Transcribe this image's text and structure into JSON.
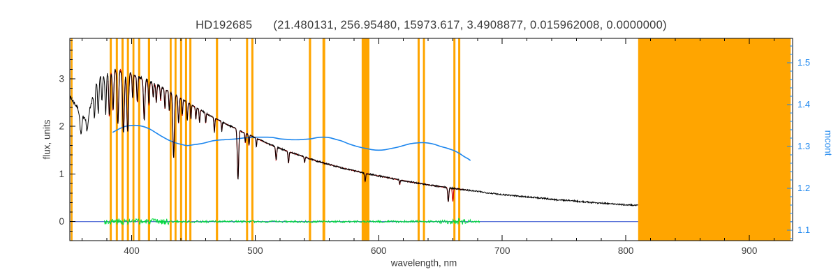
{
  "title": {
    "star": "HD192685",
    "params": "(21.480131, 256.95480, 15973.617, 3.4908877, 0.015962008, 0.0000000)"
  },
  "axes": {
    "x": {
      "label": "wavelength, nm",
      "min": 350,
      "max": 935,
      "major_ticks": [
        400,
        500,
        600,
        700,
        800,
        900
      ],
      "minor_step": 20
    },
    "y_left": {
      "label": "flux, units",
      "min": -0.4,
      "max": 3.85,
      "major_ticks": [
        0,
        1,
        2,
        3
      ],
      "minor_step": 0.2
    },
    "y_right": {
      "label": "mcont",
      "min": 1.075,
      "max": 1.558,
      "major_ticks": [
        1.1,
        1.2,
        1.3,
        1.4,
        1.5
      ],
      "minor_step": 0.02
    }
  },
  "colors": {
    "background": "#ffffff",
    "frame": "#000000",
    "text": "#3a3a3a",
    "observed": "#000000",
    "model": "#cc0000",
    "mcont": "#1c86ee",
    "residual": "#00d93c",
    "zero_line": "#2244cc",
    "mask": "#ffa500"
  },
  "chart_data": {
    "type": "line",
    "x_unit": "nm",
    "series": [
      {
        "name": "observed spectrum",
        "role": "observed",
        "axis": "y_left",
        "range": [
          350,
          810
        ],
        "noise": {
          "amp_short": 0.045,
          "amp_long": 0.016,
          "split": 425
        }
      },
      {
        "name": "model fit",
        "role": "model",
        "axis": "y_left",
        "range": [
          381,
          672
        ],
        "noise": {
          "amp_short": 0.008,
          "amp_long": 0.005,
          "split": 425
        },
        "extra_lines": [
          [
            660,
            0.28,
            0.4
          ]
        ]
      },
      {
        "name": "residual (obs - fit)",
        "role": "residual",
        "axis": "y_left",
        "range": [
          378,
          682
        ],
        "noise": {
          "amp_short": 0.06,
          "amp_long": 0.022,
          "split": 430
        },
        "bursts": [
          [
            650,
            675,
            0.05
          ]
        ]
      },
      {
        "name": "mcont",
        "role": "mcont",
        "axis": "y_right",
        "points": [
          [
            385,
            1.334
          ],
          [
            390,
            1.342
          ],
          [
            395,
            1.348
          ],
          [
            400,
            1.35
          ],
          [
            405,
            1.35
          ],
          [
            410,
            1.347
          ],
          [
            415,
            1.341
          ],
          [
            420,
            1.332
          ],
          [
            425,
            1.323
          ],
          [
            430,
            1.315
          ],
          [
            435,
            1.309
          ],
          [
            440,
            1.305
          ],
          [
            445,
            1.302
          ],
          [
            450,
            1.304
          ],
          [
            455,
            1.306
          ],
          [
            460,
            1.309
          ],
          [
            465,
            1.313
          ],
          [
            470,
            1.315
          ],
          [
            475,
            1.316
          ],
          [
            480,
            1.317
          ],
          [
            485,
            1.318
          ],
          [
            490,
            1.32
          ],
          [
            495,
            1.321
          ],
          [
            500,
            1.322
          ],
          [
            505,
            1.322
          ],
          [
            510,
            1.322
          ],
          [
            515,
            1.321
          ],
          [
            520,
            1.318
          ],
          [
            525,
            1.317
          ],
          [
            530,
            1.316
          ],
          [
            535,
            1.316
          ],
          [
            540,
            1.317
          ],
          [
            545,
            1.318
          ],
          [
            550,
            1.321
          ],
          [
            555,
            1.322
          ],
          [
            560,
            1.321
          ],
          [
            565,
            1.317
          ],
          [
            570,
            1.313
          ],
          [
            575,
            1.307
          ],
          [
            580,
            1.302
          ],
          [
            585,
            1.298
          ],
          [
            590,
            1.295
          ],
          [
            595,
            1.292
          ],
          [
            600,
            1.291
          ],
          [
            605,
            1.292
          ],
          [
            610,
            1.295
          ],
          [
            615,
            1.298
          ],
          [
            620,
            1.302
          ],
          [
            625,
            1.306
          ],
          [
            630,
            1.308
          ],
          [
            635,
            1.309
          ],
          [
            640,
            1.308
          ],
          [
            645,
            1.305
          ],
          [
            650,
            1.3
          ],
          [
            655,
            1.296
          ],
          [
            660,
            1.291
          ],
          [
            663,
            1.287
          ],
          [
            666,
            1.282
          ],
          [
            669,
            1.276
          ],
          [
            672,
            1.271
          ],
          [
            674,
            1.267
          ]
        ]
      },
      {
        "name": "zero level",
        "role": "zero",
        "axis": "y_left",
        "value": 0,
        "range": [
          350,
          935
        ]
      }
    ],
    "continuum_anchors": [
      [
        350,
        2.62
      ],
      [
        353,
        2.52
      ],
      [
        356,
        2.4
      ],
      [
        359,
        2.28
      ],
      [
        362,
        2.2
      ],
      [
        365,
        2.26
      ],
      [
        368,
        2.55
      ],
      [
        371,
        2.92
      ],
      [
        374,
        3.04
      ],
      [
        377,
        3.1
      ],
      [
        381,
        3.14
      ],
      [
        385,
        3.17
      ],
      [
        390,
        3.2
      ],
      [
        395,
        3.16
      ],
      [
        400,
        3.1
      ],
      [
        406,
        3.03
      ],
      [
        412,
        2.97
      ],
      [
        418,
        2.9
      ],
      [
        424,
        2.82
      ],
      [
        430,
        2.74
      ],
      [
        436,
        2.65
      ],
      [
        442,
        2.56
      ],
      [
        448,
        2.46
      ],
      [
        454,
        2.37
      ],
      [
        460,
        2.28
      ],
      [
        466,
        2.19
      ],
      [
        472,
        2.11
      ],
      [
        478,
        2.03
      ],
      [
        484,
        1.96
      ],
      [
        490,
        1.88
      ],
      [
        496,
        1.81
      ],
      [
        502,
        1.74
      ],
      [
        510,
        1.64
      ],
      [
        518,
        1.56
      ],
      [
        526,
        1.48
      ],
      [
        534,
        1.41
      ],
      [
        542,
        1.34
      ],
      [
        550,
        1.27
      ],
      [
        560,
        1.2
      ],
      [
        570,
        1.13
      ],
      [
        580,
        1.07
      ],
      [
        590,
        1.01
      ],
      [
        600,
        0.96
      ],
      [
        612,
        0.9
      ],
      [
        624,
        0.84
      ],
      [
        636,
        0.79
      ],
      [
        648,
        0.74
      ],
      [
        660,
        0.7
      ],
      [
        672,
        0.66
      ],
      [
        684,
        0.62
      ],
      [
        696,
        0.58
      ],
      [
        708,
        0.55
      ],
      [
        720,
        0.52
      ],
      [
        732,
        0.49
      ],
      [
        744,
        0.46
      ],
      [
        756,
        0.44
      ],
      [
        768,
        0.41
      ],
      [
        780,
        0.39
      ],
      [
        795,
        0.36
      ],
      [
        810,
        0.34
      ]
    ],
    "absorption_lines": [
      [
        359,
        0.45,
        0.8
      ],
      [
        364,
        0.35,
        0.7
      ],
      [
        370,
        0.6,
        0.6
      ],
      [
        373,
        0.7,
        0.6
      ],
      [
        376,
        0.55,
        0.5
      ],
      [
        379,
        0.85,
        0.55
      ],
      [
        382,
        0.95,
        0.55
      ],
      [
        385,
        0.85,
        0.55
      ],
      [
        388.9,
        1.15,
        0.6
      ],
      [
        393.4,
        1.3,
        0.7
      ],
      [
        396.8,
        1.25,
        0.7
      ],
      [
        400.9,
        0.5,
        0.45
      ],
      [
        404.6,
        0.55,
        0.45
      ],
      [
        410.2,
        0.85,
        0.6
      ],
      [
        414,
        0.5,
        0.45
      ],
      [
        417.5,
        0.3,
        0.4
      ],
      [
        420,
        0.38,
        0.4
      ],
      [
        423.5,
        0.3,
        0.35
      ],
      [
        427,
        0.42,
        0.4
      ],
      [
        430.5,
        0.4,
        0.4
      ],
      [
        434,
        1.35,
        0.6
      ],
      [
        438,
        0.55,
        0.45
      ],
      [
        441,
        0.35,
        0.4
      ],
      [
        445,
        0.38,
        0.4
      ],
      [
        448,
        0.32,
        0.35
      ],
      [
        452,
        0.25,
        0.35
      ],
      [
        455,
        0.28,
        0.35
      ],
      [
        460,
        0.22,
        0.3
      ],
      [
        467,
        0.3,
        0.35
      ],
      [
        473,
        0.2,
        0.3
      ],
      [
        486.1,
        1.05,
        0.55
      ],
      [
        492,
        0.2,
        0.3
      ],
      [
        495,
        0.22,
        0.35
      ],
      [
        501,
        0.18,
        0.3
      ],
      [
        517,
        0.28,
        0.45
      ],
      [
        527,
        0.25,
        0.4
      ],
      [
        540,
        0.12,
        0.3
      ],
      [
        589,
        0.18,
        0.4
      ],
      [
        617,
        0.1,
        0.3
      ],
      [
        656.3,
        0.3,
        0.45
      ]
    ],
    "masked_bands": [
      [
        350.8,
        352.2
      ],
      [
        382.3,
        384
      ],
      [
        387.2,
        388.9
      ],
      [
        391.8,
        393.5
      ],
      [
        396.2,
        397.9
      ],
      [
        400.7,
        402.3
      ],
      [
        405.3,
        407
      ],
      [
        413.2,
        415
      ],
      [
        430.8,
        432.4
      ],
      [
        434.8,
        436.4
      ],
      [
        439.2,
        440.9
      ],
      [
        443.2,
        444.9
      ],
      [
        446.7,
        448.4
      ],
      [
        468.2,
        470
      ],
      [
        492.6,
        494.3
      ],
      [
        496.9,
        498.6
      ],
      [
        543.5,
        545.3
      ],
      [
        554.5,
        556.7
      ],
      [
        586.2,
        592.5
      ],
      [
        631.5,
        633.2
      ],
      [
        635.8,
        637.5
      ],
      [
        660.4,
        662.1
      ],
      [
        664.3,
        666
      ],
      [
        810,
        933.5
      ]
    ]
  }
}
